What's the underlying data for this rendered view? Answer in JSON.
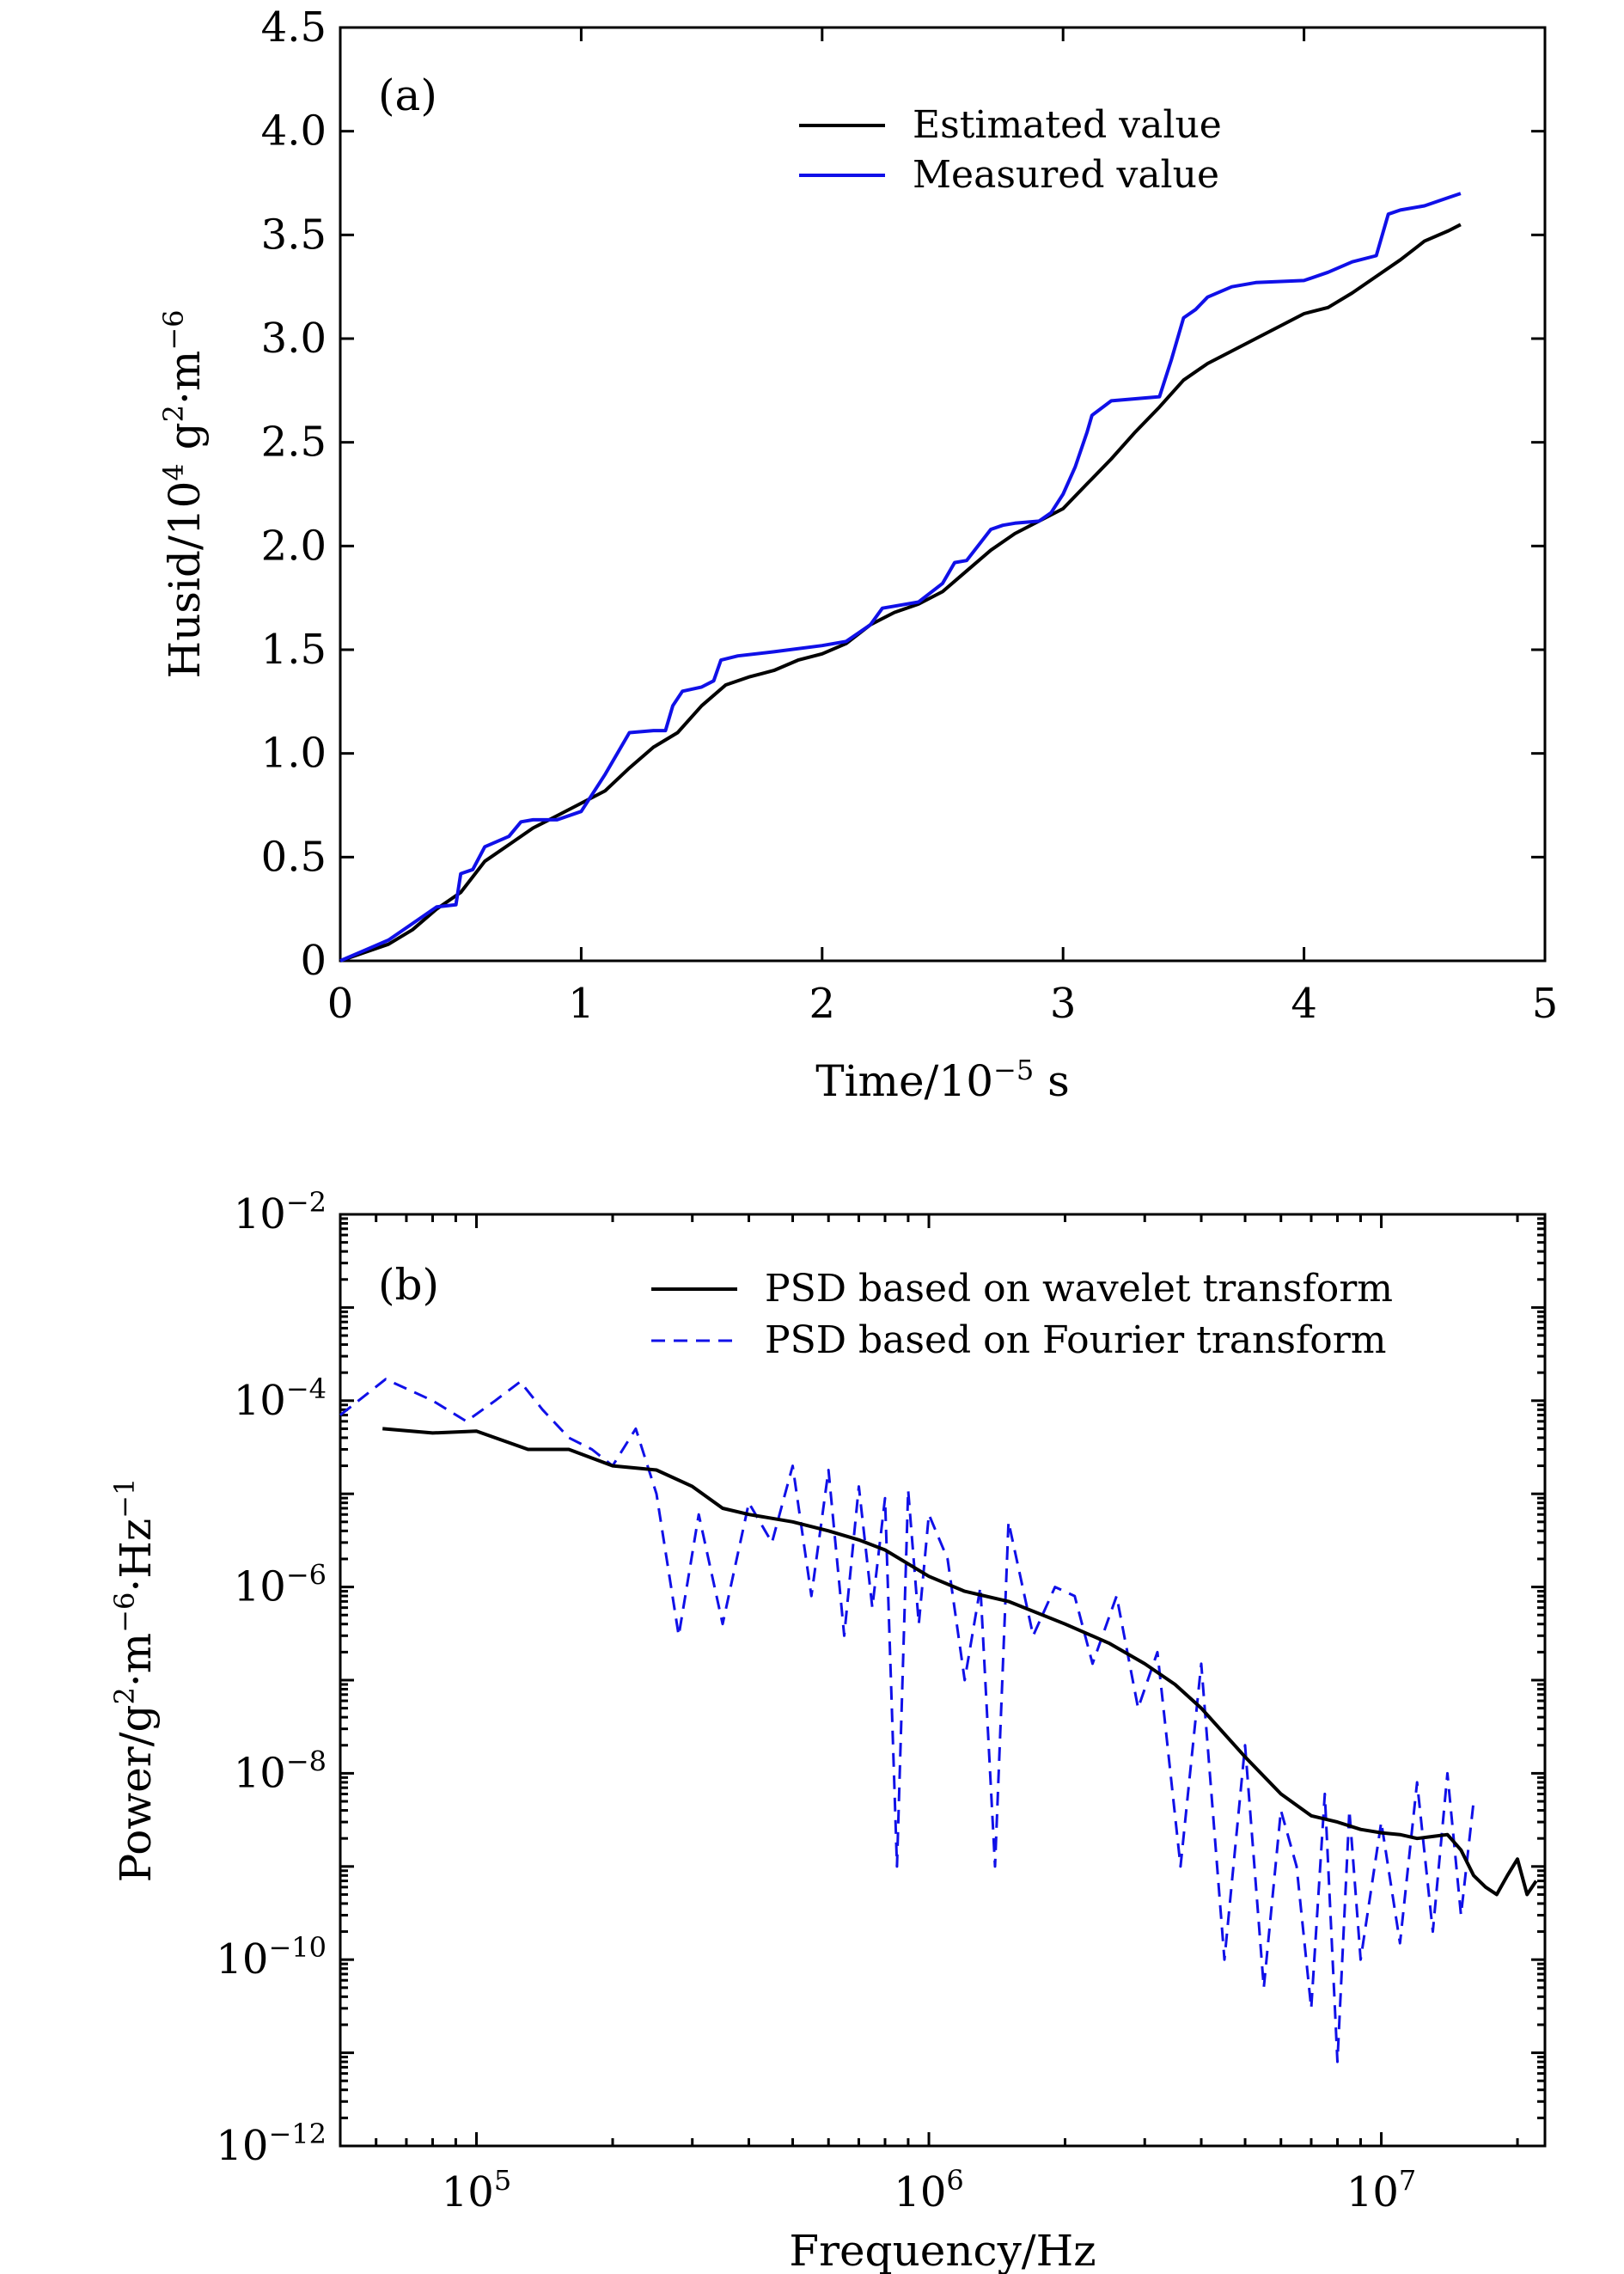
{
  "chart_data": [
    {
      "id": "a",
      "type": "line",
      "panel_label": "(a)",
      "xlabel_base": "Time/10",
      "xlabel_exp": "−5",
      "xlabel_unit": " s",
      "ylabel_parts": [
        "Husid/10",
        "4",
        " g",
        "2",
        "·m",
        "−6"
      ],
      "xlim": [
        0,
        5
      ],
      "ylim": [
        0,
        4.5
      ],
      "xticks": [
        0,
        1,
        2,
        3,
        4,
        5
      ],
      "xtick_labels": [
        "0",
        "1",
        "2",
        "3",
        "4",
        "5"
      ],
      "yticks": [
        0,
        0.5,
        1.0,
        1.5,
        2.0,
        2.5,
        3.0,
        3.5,
        4.0,
        4.5
      ],
      "ytick_labels": [
        "0",
        "0.5",
        "1.0",
        "1.5",
        "2.0",
        "2.5",
        "3.0",
        "3.5",
        "4.0",
        "4.5"
      ],
      "legend_position": "top-right",
      "series": [
        {
          "name": "Estimated value",
          "color": "#000000",
          "dash": "solid",
          "x": [
            0,
            0.1,
            0.2,
            0.3,
            0.4,
            0.5,
            0.6,
            0.7,
            0.8,
            0.9,
            1.0,
            1.1,
            1.2,
            1.3,
            1.4,
            1.5,
            1.6,
            1.7,
            1.8,
            1.9,
            2.0,
            2.1,
            2.2,
            2.3,
            2.4,
            2.5,
            2.6,
            2.7,
            2.8,
            2.9,
            3.0,
            3.1,
            3.2,
            3.3,
            3.4,
            3.5,
            3.6,
            3.7,
            3.8,
            3.9,
            4.0,
            4.1,
            4.2,
            4.3,
            4.4,
            4.5,
            4.6,
            4.65
          ],
          "y": [
            0,
            0.04,
            0.08,
            0.15,
            0.25,
            0.33,
            0.48,
            0.56,
            0.64,
            0.7,
            0.76,
            0.82,
            0.93,
            1.03,
            1.1,
            1.23,
            1.33,
            1.37,
            1.4,
            1.45,
            1.48,
            1.53,
            1.62,
            1.68,
            1.72,
            1.78,
            1.88,
            1.98,
            2.06,
            2.12,
            2.18,
            2.3,
            2.42,
            2.55,
            2.67,
            2.8,
            2.88,
            2.94,
            3.0,
            3.06,
            3.12,
            3.15,
            3.22,
            3.3,
            3.38,
            3.47,
            3.52,
            3.55
          ]
        },
        {
          "name": "Measured value",
          "color": "#1010e8",
          "dash": "solid",
          "x": [
            0,
            0.1,
            0.2,
            0.3,
            0.4,
            0.48,
            0.5,
            0.55,
            0.6,
            0.7,
            0.75,
            0.8,
            0.9,
            1.0,
            1.1,
            1.2,
            1.3,
            1.35,
            1.38,
            1.42,
            1.5,
            1.55,
            1.58,
            1.65,
            1.8,
            2.0,
            2.1,
            2.15,
            2.2,
            2.25,
            2.3,
            2.4,
            2.5,
            2.55,
            2.6,
            2.7,
            2.75,
            2.8,
            2.9,
            2.95,
            3.0,
            3.05,
            3.1,
            3.12,
            3.2,
            3.4,
            3.45,
            3.5,
            3.55,
            3.6,
            3.7,
            3.8,
            4.0,
            4.1,
            4.2,
            4.3,
            4.35,
            4.4,
            4.5,
            4.6,
            4.65
          ],
          "y": [
            0,
            0.05,
            0.1,
            0.18,
            0.26,
            0.27,
            0.42,
            0.44,
            0.55,
            0.6,
            0.67,
            0.68,
            0.68,
            0.72,
            0.9,
            1.1,
            1.11,
            1.11,
            1.23,
            1.3,
            1.32,
            1.35,
            1.45,
            1.47,
            1.49,
            1.52,
            1.54,
            1.58,
            1.62,
            1.7,
            1.71,
            1.73,
            1.82,
            1.92,
            1.93,
            2.08,
            2.1,
            2.11,
            2.12,
            2.16,
            2.25,
            2.38,
            2.55,
            2.63,
            2.7,
            2.72,
            2.9,
            3.1,
            3.14,
            3.2,
            3.25,
            3.27,
            3.28,
            3.32,
            3.37,
            3.4,
            3.6,
            3.62,
            3.64,
            3.68,
            3.7
          ]
        }
      ]
    },
    {
      "id": "b",
      "type": "line",
      "panel_label": "(b)",
      "xlabel": "Frequency/Hz",
      "ylabel_parts": [
        "Power/g",
        "2",
        "·m",
        "−6",
        "·Hz",
        "−1"
      ],
      "xscale": "log",
      "yscale": "log",
      "xlim": [
        50000,
        23000000
      ],
      "ylim": [
        1e-12,
        0.01
      ],
      "xticks": [
        100000,
        1000000,
        10000000
      ],
      "xtick_labels": [
        [
          "10",
          "5"
        ],
        [
          "10",
          "6"
        ],
        [
          "10",
          "7"
        ]
      ],
      "yticks": [
        1e-12,
        1e-10,
        1e-08,
        1e-06,
        0.0001,
        0.01
      ],
      "ytick_labels": [
        [
          "10",
          "−12"
        ],
        [
          "10",
          "−10"
        ],
        [
          "10",
          "−8"
        ],
        [
          "10",
          "−6"
        ],
        [
          "10",
          "−4"
        ],
        [
          "10",
          "−2"
        ]
      ],
      "legend_position": "top-right",
      "series": [
        {
          "name": "PSD based on wavelet transform",
          "color": "#000000",
          "dash": "solid",
          "x": [
            62000,
            80000,
            100000,
            130000,
            160000,
            200000,
            250000,
            300000,
            350000,
            400000,
            500000,
            600000,
            700000,
            800000,
            1000000,
            1200000,
            1500000,
            2000000,
            2500000,
            3000000,
            3500000,
            4000000,
            5000000,
            6000000,
            7000000,
            8000000,
            9000000,
            10000000,
            11000000,
            12000000,
            13000000,
            14000000,
            15000000,
            16000000,
            17000000,
            18000000,
            19000000,
            20000000,
            21000000,
            22000000
          ],
          "y": [
            5e-05,
            4.5e-05,
            4.7e-05,
            3e-05,
            3e-05,
            2e-05,
            1.8e-05,
            1.2e-05,
            7e-06,
            6e-06,
            5e-06,
            4e-06,
            3.2e-06,
            2.5e-06,
            1.3e-06,
            9e-07,
            7e-07,
            4e-07,
            2.5e-07,
            1.5e-07,
            9e-08,
            5e-08,
            1.5e-08,
            6e-09,
            3.5e-09,
            3e-09,
            2.5e-09,
            2.3e-09,
            2.2e-09,
            2e-09,
            2.1e-09,
            2.2e-09,
            1.5e-09,
            8e-10,
            6e-10,
            5e-10,
            8e-10,
            1.2e-09,
            5e-10,
            7e-10
          ]
        },
        {
          "name": "PSD based on Fourier transform",
          "color": "#1010e8",
          "dash": "dashed",
          "x": [
            50000,
            63000,
            80000,
            95000,
            110000,
            125000,
            140000,
            160000,
            180000,
            200000,
            225000,
            250000,
            280000,
            310000,
            350000,
            400000,
            450000,
            500000,
            550000,
            600000,
            650000,
            700000,
            750000,
            800000,
            850000,
            900000,
            950000,
            1000000,
            1100000,
            1200000,
            1300000,
            1400000,
            1500000,
            1700000,
            1900000,
            2100000,
            2300000,
            2600000,
            2900000,
            3200000,
            3600000,
            4000000,
            4500000,
            5000000,
            5500000,
            6000000,
            6500000,
            7000000,
            7500000,
            8000000,
            8500000,
            9000000,
            10000000,
            11000000,
            12000000,
            13000000,
            14000000,
            15000000,
            16000000
          ],
          "y": [
            7e-05,
            0.00017,
            0.0001,
            6e-05,
            0.0001,
            0.00016,
            8e-05,
            4e-05,
            3e-05,
            2e-05,
            5e-05,
            1e-05,
            3e-07,
            6e-06,
            4e-07,
            8e-06,
            3e-06,
            2e-05,
            8e-07,
            1.8e-05,
            3e-07,
            1.2e-05,
            6e-07,
            9e-06,
            1e-09,
            1.1e-05,
            4e-07,
            6e-06,
            2e-06,
            1e-07,
            1e-06,
            1e-09,
            5e-06,
            3e-07,
            1e-06,
            8e-07,
            1.5e-07,
            8e-07,
            5e-08,
            2e-07,
            1e-09,
            1.5e-07,
            1e-10,
            2e-08,
            5e-11,
            4e-09,
            1e-09,
            3e-11,
            6e-09,
            8e-12,
            4e-09,
            1e-10,
            3e-09,
            1.5e-10,
            8e-09,
            2e-10,
            1e-08,
            3e-10,
            5e-09
          ]
        }
      ]
    }
  ]
}
